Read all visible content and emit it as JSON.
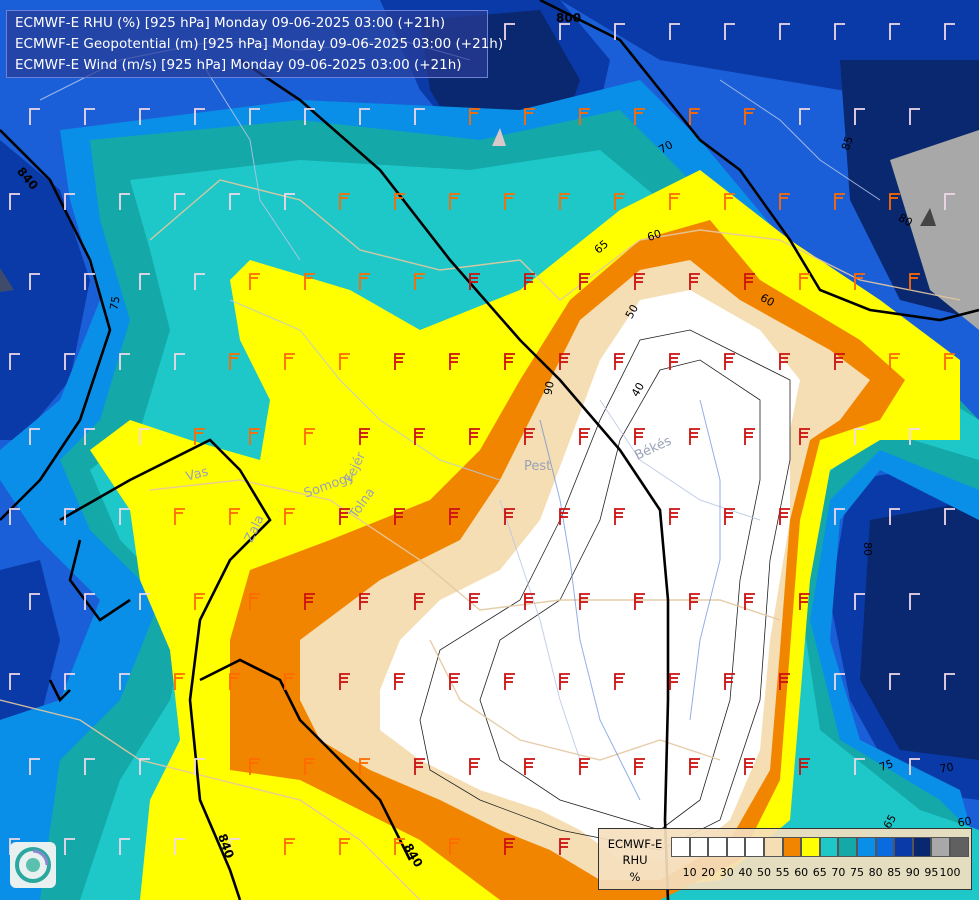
{
  "titles": [
    "ECMWF-E RHU (%) [925 hPa] Monday 09-06-2025 03:00 (+21h)",
    "ECMWF-E Geopotential (m) [925 hPa] Monday 09-06-2025 03:00 (+21h)",
    "ECMWF-E Wind (m/s) [925 hPa] Monday 09-06-2025 03:00 (+21h)"
  ],
  "legend": {
    "name_lines": [
      "ECMWF-E",
      "RHU",
      "%"
    ],
    "colors": [
      "#ffffff",
      "#ffffff",
      "#ffffff",
      "#ffffff",
      "#ffffff",
      "#f5deb3",
      "#f28500",
      "#ffff00",
      "#1ec8c8",
      "#15a8a8",
      "#0a8fe8",
      "#0a6ae0",
      "#0a3aa8",
      "#0a2870",
      "#a8a8a8",
      "#606060"
    ],
    "ticks": [
      "10",
      "20",
      "30",
      "40",
      "50",
      "55",
      "60",
      "65",
      "70",
      "75",
      "80",
      "85",
      "90",
      "95",
      "100"
    ]
  },
  "contour_labels": {
    "geopotential": [
      "800",
      "840",
      "840",
      "840"
    ],
    "rhu": [
      "70",
      "65",
      "60",
      "60",
      "50",
      "40",
      "75",
      "85",
      "80",
      "80",
      "75",
      "70",
      "65",
      "60",
      "90"
    ]
  },
  "place_names": [
    "Pest",
    "Békés",
    "Vas",
    "Somogy",
    "Fejér",
    "Tolna",
    "Zala"
  ]
}
